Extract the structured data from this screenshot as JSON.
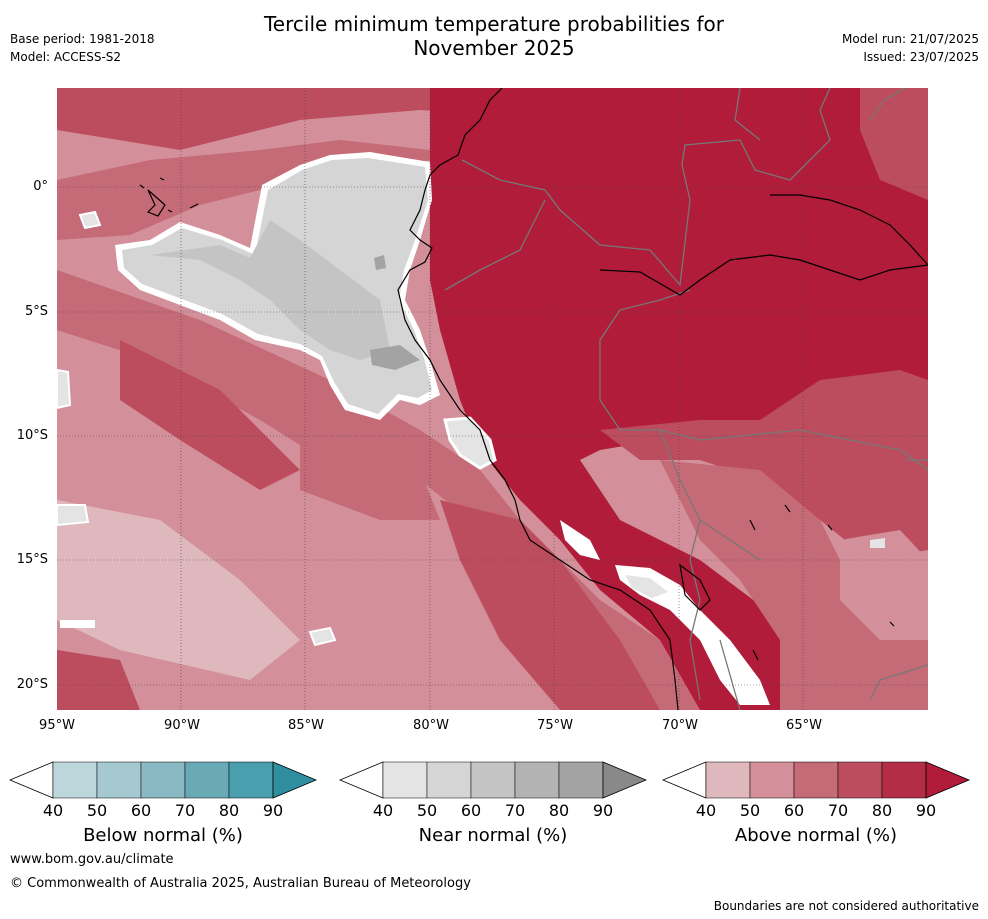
{
  "header": {
    "title_line1": "Tercile minimum temperature probabilities for",
    "title_line2": "November 2025",
    "base_period": "Base period: 1981-2018",
    "model": "Model: ACCESS-S2",
    "model_run": "Model run: 21/07/2025",
    "issued": "Issued: 23/07/2025"
  },
  "map": {
    "lon_labels": [
      "95°W",
      "90°W",
      "85°W",
      "80°W",
      "75°W",
      "70°W",
      "65°W"
    ],
    "lat_labels": [
      "0°",
      "5°S",
      "10°S",
      "15°S",
      "20°S"
    ],
    "colors": {
      "above": [
        "#dfb8bd",
        "#d3909a",
        "#c56a77",
        "#bc4d5e",
        "#b22d45",
        "#b01c3a"
      ],
      "near": [
        "#e4e4e4",
        "#d5d5d5",
        "#c4c4c4",
        "#b3b3b3",
        "#a3a3a3",
        "#898989"
      ],
      "below": [
        "#bdd6dc",
        "#a6c9d1",
        "#8ab8c3",
        "#6aa9b6",
        "#4a9fae",
        "#2f8fa1"
      ]
    }
  },
  "colorbars": [
    {
      "id": "below",
      "title": "Below normal (%)",
      "ticks": [
        "40",
        "50",
        "60",
        "70",
        "80",
        "90"
      ]
    },
    {
      "id": "near",
      "title": "Near normal (%)",
      "ticks": [
        "40",
        "50",
        "60",
        "70",
        "80",
        "90"
      ]
    },
    {
      "id": "above",
      "title": "Above normal (%)",
      "ticks": [
        "40",
        "50",
        "60",
        "70",
        "80",
        "90"
      ]
    }
  ],
  "footer": {
    "website": "www.bom.gov.au/climate",
    "copyright": "© Commonwealth of Australia 2025, Australian Bureau of Meteorology",
    "disclaimer": "Boundaries are not considered authoritative"
  }
}
